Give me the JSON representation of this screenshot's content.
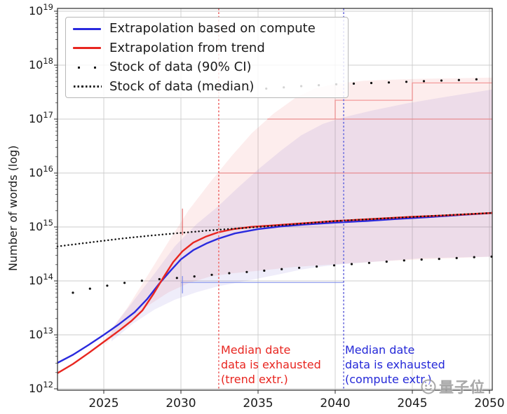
{
  "legend": {
    "items": [
      {
        "label": "Extrapolation based on compute",
        "type": "line",
        "color": "#2a2ade"
      },
      {
        "label": "Extrapolation from trend",
        "type": "line",
        "color": "#e82620"
      },
      {
        "label": "Stock of data (90% CI)",
        "type": "sparse-dots",
        "color": "#1a1a1a"
      },
      {
        "label": "Stock of data (median)",
        "type": "dotted-line",
        "color": "#1a1a1a"
      }
    ]
  },
  "annotations": {
    "trend": {
      "lines": [
        "Median date",
        "data is exhausted",
        "(trend extr.)"
      ],
      "color": "#e82620",
      "year": 2032.4
    },
    "compute": {
      "lines": [
        "Median date",
        "data is exhausted",
        "(compute extr.)"
      ],
      "color": "#2428d8",
      "year": 2040.5
    }
  },
  "watermark": {
    "text": "量子位",
    "icon": "qbitai-face-logo"
  },
  "chart_data": {
    "type": "line",
    "title": "",
    "xlabel": "",
    "ylabel": "Number of words (log)",
    "y_scale": "log10",
    "xlim": [
      2022.0,
      2050.18
    ],
    "ylim_log": [
      11.974,
      19.052
    ],
    "x_ticks": [
      2025,
      2030,
      2035,
      2040,
      2045,
      2050
    ],
    "y_ticks_exp": [
      12,
      13,
      14,
      15,
      16,
      17,
      18,
      19
    ],
    "grid": true,
    "series": [
      {
        "name": "Extrapolation based on compute",
        "style": "solid",
        "color": "#2a2ade",
        "width": 2.4,
        "points": [
          [
            2022,
            12.48
          ],
          [
            2023,
            12.63
          ],
          [
            2024,
            12.81
          ],
          [
            2025,
            13.0
          ],
          [
            2026,
            13.2
          ],
          [
            2027,
            13.42
          ],
          [
            2027.8,
            13.66
          ],
          [
            2028.6,
            13.95
          ],
          [
            2029.3,
            14.18
          ],
          [
            2030,
            14.4
          ],
          [
            2030.8,
            14.57
          ],
          [
            2031.7,
            14.7
          ],
          [
            2032.4,
            14.78
          ],
          [
            2033.5,
            14.88
          ],
          [
            2035,
            14.96
          ],
          [
            2036.5,
            15.01
          ],
          [
            2038,
            15.045
          ],
          [
            2040,
            15.08
          ],
          [
            2042,
            15.11
          ],
          [
            2044,
            15.15
          ],
          [
            2046,
            15.18
          ],
          [
            2048,
            15.22
          ],
          [
            2050.18,
            15.26
          ]
        ]
      },
      {
        "name": "Extrapolation from trend",
        "style": "solid",
        "color": "#e82620",
        "width": 2.4,
        "points": [
          [
            2022,
            12.29
          ],
          [
            2023,
            12.46
          ],
          [
            2024,
            12.66
          ],
          [
            2025,
            12.87
          ],
          [
            2026,
            13.08
          ],
          [
            2026.8,
            13.26
          ],
          [
            2027.5,
            13.45
          ],
          [
            2028.2,
            13.75
          ],
          [
            2028.9,
            14.08
          ],
          [
            2029.5,
            14.35
          ],
          [
            2030.1,
            14.55
          ],
          [
            2030.8,
            14.71
          ],
          [
            2031.6,
            14.82
          ],
          [
            2032.4,
            14.9
          ],
          [
            2033.4,
            14.96
          ],
          [
            2034.5,
            15.0
          ],
          [
            2036,
            15.03
          ],
          [
            2038,
            15.07
          ],
          [
            2040,
            15.11
          ],
          [
            2042.5,
            15.15
          ],
          [
            2045,
            15.19
          ],
          [
            2047.5,
            15.22
          ],
          [
            2050.18,
            15.26
          ]
        ]
      },
      {
        "name": "Stock of data (median)",
        "style": "dotted",
        "color": "#111111",
        "dot_r": 1.25,
        "spacing_px": 5.2,
        "points": [
          [
            2022,
            14.64
          ],
          [
            2024,
            14.71
          ],
          [
            2026,
            14.78
          ],
          [
            2028,
            14.84
          ],
          [
            2030,
            14.89
          ],
          [
            2032,
            14.94
          ],
          [
            2034,
            14.98
          ],
          [
            2036,
            15.02
          ],
          [
            2038,
            15.065
          ],
          [
            2040,
            15.11
          ],
          [
            2042,
            15.14
          ],
          [
            2044,
            15.17
          ],
          [
            2046,
            15.2
          ],
          [
            2048,
            15.23
          ],
          [
            2050.18,
            15.26
          ]
        ]
      },
      {
        "name": "Stock of data lower 90% CI",
        "style": "sparse-dots",
        "color": "#111111",
        "dot_r": 1.6,
        "spacing_px": 25,
        "points": [
          [
            2023.0,
            13.78
          ],
          [
            2024,
            13.85
          ],
          [
            2025,
            13.9
          ],
          [
            2026,
            13.95
          ],
          [
            2027,
            13.99
          ],
          [
            2028,
            14.02
          ],
          [
            2029,
            14.04
          ],
          [
            2030,
            14.06
          ],
          [
            2031.5,
            14.1
          ],
          [
            2033,
            14.14
          ],
          [
            2035,
            14.18
          ],
          [
            2037,
            14.23
          ],
          [
            2039,
            14.27
          ],
          [
            2041,
            14.31
          ],
          [
            2043,
            14.35
          ],
          [
            2045,
            14.39
          ],
          [
            2047,
            14.41
          ],
          [
            2049,
            14.44
          ],
          [
            2050.18,
            14.45
          ]
        ]
      },
      {
        "name": "Stock of data upper 90% CI",
        "style": "sparse-dots",
        "color": "#111111",
        "dot_r": 1.6,
        "spacing_px": 25,
        "points": [
          [
            2034.4,
            17.54
          ],
          [
            2036,
            17.575
          ],
          [
            2038,
            17.615
          ],
          [
            2040,
            17.645
          ],
          [
            2042,
            17.665
          ],
          [
            2044,
            17.685
          ],
          [
            2046,
            17.705
          ],
          [
            2048,
            17.725
          ],
          [
            2050.18,
            17.75
          ]
        ]
      }
    ],
    "bands": [
      {
        "name": "trend extrapolation 90% CI",
        "color": "rgba(235,75,75,0.10)",
        "upper": [
          [
            2025.1,
            12.95
          ],
          [
            2026.5,
            13.49
          ],
          [
            2027.8,
            14.08
          ],
          [
            2029.2,
            14.73
          ],
          [
            2030.5,
            15.31
          ],
          [
            2031.9,
            15.83
          ],
          [
            2033.3,
            16.32
          ],
          [
            2034.6,
            16.74
          ],
          [
            2036,
            17.1
          ],
          [
            2037.4,
            17.39
          ],
          [
            2038.7,
            17.57
          ],
          [
            2040.1,
            17.66
          ],
          [
            2041.9,
            17.71
          ],
          [
            2044.6,
            17.74
          ],
          [
            2050.18,
            17.77
          ]
        ],
        "lower": [
          [
            2025.1,
            12.82
          ],
          [
            2026.5,
            13.21
          ],
          [
            2027.8,
            13.53
          ],
          [
            2029.2,
            13.79
          ],
          [
            2030.5,
            13.96
          ],
          [
            2031.9,
            14.08
          ],
          [
            2033.3,
            14.14
          ],
          [
            2035.1,
            14.19
          ],
          [
            2037.4,
            14.26
          ],
          [
            2040.1,
            14.31
          ],
          [
            2042.8,
            14.36
          ],
          [
            2045.5,
            14.4
          ],
          [
            2050.18,
            14.45
          ]
        ]
      },
      {
        "name": "compute extrapolation 90% CI",
        "color": "rgba(100,80,210,0.10)",
        "upper": [
          [
            2025.5,
            13.1
          ],
          [
            2026.9,
            13.62
          ],
          [
            2028.3,
            14.14
          ],
          [
            2029.6,
            14.64
          ],
          [
            2031,
            15.05
          ],
          [
            2032.4,
            15.38
          ],
          [
            2033.7,
            15.73
          ],
          [
            2035.1,
            16.09
          ],
          [
            2036.5,
            16.42
          ],
          [
            2037.8,
            16.7
          ],
          [
            2039.2,
            16.91
          ],
          [
            2040.5,
            17.03
          ],
          [
            2042.4,
            17.16
          ],
          [
            2044.6,
            17.29
          ],
          [
            2046.9,
            17.4
          ],
          [
            2050.18,
            17.55
          ]
        ],
        "lower": [
          [
            2025.5,
            12.88
          ],
          [
            2026.9,
            13.21
          ],
          [
            2028.3,
            13.47
          ],
          [
            2029.6,
            13.65
          ],
          [
            2031,
            13.79
          ],
          [
            2032.4,
            13.9
          ],
          [
            2033.7,
            13.97
          ],
          [
            2035.1,
            14.05
          ],
          [
            2036.5,
            14.13
          ],
          [
            2037.8,
            14.21
          ],
          [
            2039.2,
            14.27
          ],
          [
            2040.5,
            14.31
          ],
          [
            2042.8,
            14.36
          ],
          [
            2045.5,
            14.42
          ],
          [
            2050.18,
            14.45
          ]
        ]
      }
    ],
    "vlines": [
      {
        "name": "median date data exhausted (trend extr.)",
        "year": 2032.45,
        "color": "#f07a7a",
        "style": "dashed"
      },
      {
        "name": "median date data exhausted (compute extr.)",
        "year": 2040.55,
        "color": "#7a7ae0",
        "style": "dashed"
      }
    ],
    "aux_lines": [
      {
        "color": "rgba(240,125,125,0.75)",
        "points": [
          [
            2032.45,
            16.0
          ],
          [
            2050.18,
            16.0
          ]
        ]
      },
      {
        "color": "rgba(240,125,125,0.75)",
        "points": [
          [
            2035.6,
            17.0
          ],
          [
            2050.18,
            17.0
          ]
        ]
      },
      {
        "color": "rgba(240,125,125,0.75)",
        "points": [
          [
            2040.0,
            17.0
          ],
          [
            2040.0,
            17.35
          ],
          [
            2045.0,
            17.35
          ],
          [
            2045.0,
            17.67
          ],
          [
            2050.18,
            17.67
          ]
        ]
      },
      {
        "color": "rgba(225,90,90,0.8)",
        "points": [
          [
            2030.1,
            14.85
          ],
          [
            2030.1,
            15.34
          ]
        ]
      },
      {
        "color": "rgba(130,145,235,0.8)",
        "points": [
          [
            2030.0,
            13.97
          ],
          [
            2040.55,
            13.97
          ]
        ]
      },
      {
        "color": "rgba(115,130,235,0.85)",
        "points": [
          [
            2030.1,
            13.77
          ],
          [
            2030.1,
            14.09
          ]
        ]
      }
    ]
  }
}
